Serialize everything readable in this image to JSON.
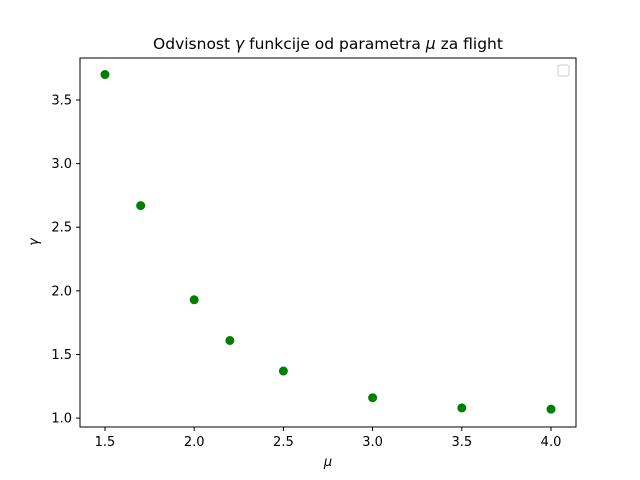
{
  "chart_data": {
    "type": "scatter",
    "title": {
      "pre": "Odvisnost ",
      "sym1": "γ",
      "mid": " funkcije od parametra ",
      "sym2": "μ",
      "post": " za flight"
    },
    "xlabel": "μ",
    "ylabel": "γ",
    "xlim": [
      1.36,
      4.14
    ],
    "ylim": [
      0.93,
      3.83
    ],
    "xticks": [
      1.5,
      2.0,
      2.5,
      3.0,
      3.5,
      4.0
    ],
    "xtick_labels": [
      "1.5",
      "2.0",
      "2.5",
      "3.0",
      "3.5",
      "4.0"
    ],
    "yticks": [
      1.0,
      1.5,
      2.0,
      2.5,
      3.0,
      3.5
    ],
    "ytick_labels": [
      "1.0",
      "1.5",
      "2.0",
      "2.5",
      "3.0",
      "3.5"
    ],
    "points": [
      {
        "x": 1.5,
        "y": 3.7
      },
      {
        "x": 1.7,
        "y": 2.67
      },
      {
        "x": 2.0,
        "y": 1.93
      },
      {
        "x": 2.2,
        "y": 1.61
      },
      {
        "x": 2.5,
        "y": 1.37
      },
      {
        "x": 3.0,
        "y": 1.16
      },
      {
        "x": 3.5,
        "y": 1.08
      },
      {
        "x": 4.0,
        "y": 1.07
      }
    ],
    "marker_color": "#008000",
    "legend": {
      "placement": "top-right",
      "entries": []
    },
    "grid": false
  }
}
